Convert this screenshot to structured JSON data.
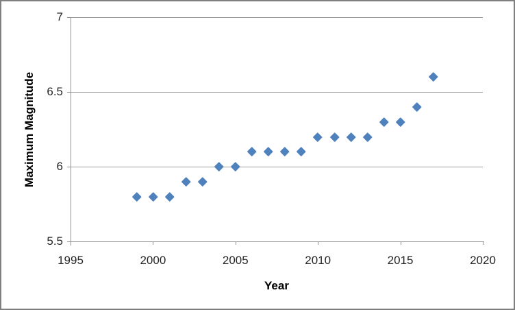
{
  "window": {
    "background_color": "#ffffff",
    "border_color": "#7f7f7f"
  },
  "colors": {
    "marker_fill": "#4F81BD",
    "gridline": "#9a9a9a",
    "axis_line": "#8f8f8f",
    "tick_label_text": "#262626",
    "axis_title_text": "#000000"
  },
  "chart_data": {
    "type": "scatter",
    "title": "",
    "xlabel": "Year",
    "ylabel": "Maximum Magnitude",
    "xlim": [
      1995,
      2020
    ],
    "ylim": [
      5.5,
      7
    ],
    "x_ticks": [
      "1995",
      "2000",
      "2005",
      "2010",
      "2015",
      "2020"
    ],
    "y_ticks": [
      "5.5",
      "6",
      "6.5",
      "7"
    ],
    "grid": "horizontal-only",
    "legend": "none",
    "marker_shape": "diamond",
    "series": [
      {
        "name": "Maximum Magnitude",
        "x": [
          1999,
          2000,
          2001,
          2002,
          2003,
          2004,
          2005,
          2006,
          2007,
          2008,
          2009,
          2010,
          2011,
          2012,
          2013,
          2014,
          2015,
          2016,
          2017
        ],
        "y": [
          5.8,
          5.8,
          5.8,
          5.9,
          5.9,
          6.0,
          6.0,
          6.1,
          6.1,
          6.1,
          6.1,
          6.2,
          6.2,
          6.2,
          6.2,
          6.3,
          6.3,
          6.4,
          6.6
        ]
      }
    ]
  }
}
